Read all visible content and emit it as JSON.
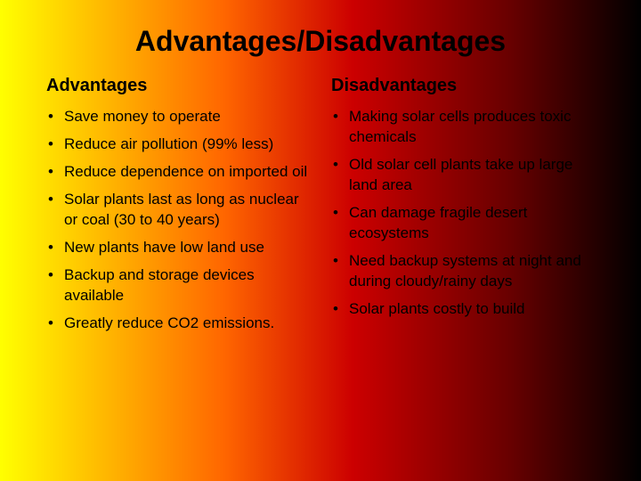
{
  "title": "Advantages/Disadvantages",
  "left": {
    "heading": "Advantages",
    "items": [
      "Save money to operate",
      "Reduce air pollution (99% less)",
      "Reduce dependence on imported oil",
      "Solar plants last as long as nuclear or coal (30 to 40 years)",
      "New plants have low land use",
      "Backup and storage devices available",
      "Greatly reduce CO2 emissions."
    ]
  },
  "right": {
    "heading": "Disadvantages",
    "items": [
      "Making solar cells produces toxic chemicals",
      "Old solar cell plants take up large land area",
      "Can damage fragile desert ecosystems",
      "Need backup systems at night and during cloudy/rainy days",
      "Solar plants costly to build"
    ]
  }
}
